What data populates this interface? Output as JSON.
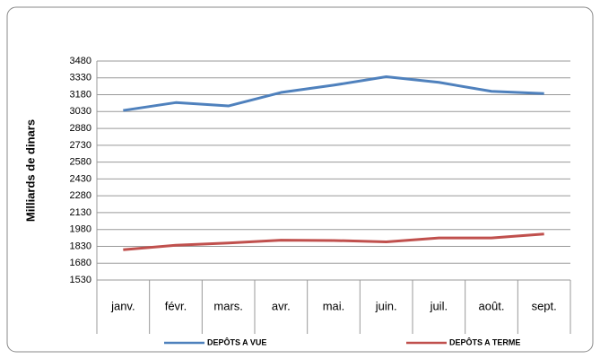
{
  "chart_data": {
    "type": "line",
    "y_label": "Milliards de dinars",
    "categories": [
      "janv.",
      "févr.",
      "mars.",
      "avr.",
      "mai.",
      "juin.",
      "juil.",
      "août.",
      "sept."
    ],
    "series": [
      {
        "name": "DEPÔTS A VUE",
        "color": "#4f81bd",
        "values": [
          3040,
          3110,
          3080,
          3200,
          3265,
          3340,
          3290,
          3210,
          3190
        ]
      },
      {
        "name": "DEPÔTS A TERME",
        "color": "#c0504d",
        "values": [
          1800,
          1840,
          1860,
          1885,
          1882,
          1870,
          1905,
          1905,
          1940
        ]
      }
    ],
    "ylim": [
      1530,
      3480
    ],
    "yticks": [
      1530,
      1680,
      1830,
      1980,
      2130,
      2280,
      2430,
      2580,
      2730,
      2880,
      3030,
      3180,
      3330,
      3480
    ],
    "grid": true,
    "legend": "bottom"
  }
}
